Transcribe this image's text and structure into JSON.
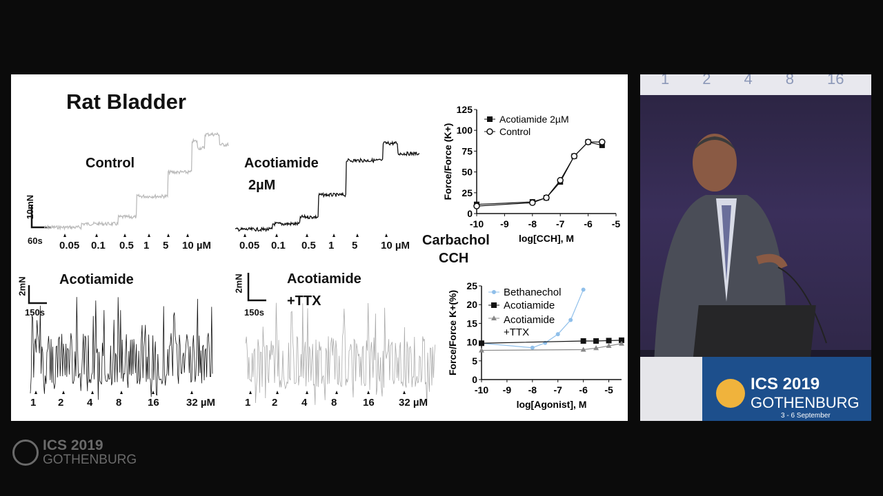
{
  "slide": {
    "title": "Rat Bladder",
    "control_label": "Control",
    "acotiamide_label_1": "Acotiamide",
    "acotiamide_label_2": "2µM",
    "scale_top": "10mN",
    "scale_top_time": "60s",
    "top_doses": [
      "0.05",
      "0.1",
      "0.5",
      "1",
      "5",
      "10 µM"
    ],
    "carbachol_1": "Carbachol",
    "carbachol_2": "CCH",
    "bottom_left_label": "Acotiamide",
    "bottom_mid_label_1": "Acotiamide",
    "bottom_mid_label_2": "+TTX",
    "scale_bottom": "2mN",
    "scale_bottom_time": "150s",
    "bottom_doses": [
      "1",
      "2",
      "4",
      "8",
      "16",
      "32 µM"
    ]
  },
  "chart_data": [
    {
      "type": "line",
      "xlabel": "log[CCH], M",
      "ylabel": "Force/Force (K+)",
      "xlim": [
        -10,
        -5
      ],
      "ylim": [
        0,
        125
      ],
      "xticks": [
        "-10",
        "-9",
        "-8",
        "-7",
        "-6",
        "-5"
      ],
      "yticks": [
        "0",
        "25",
        "50",
        "75",
        "100",
        "125"
      ],
      "legend": "top-left",
      "series": [
        {
          "name": "Acotiamide 2µM",
          "color": "#111111",
          "marker": "square",
          "x": [
            -10,
            -8,
            -7.5,
            -7,
            -6.5,
            -6,
            -5.5
          ],
          "y": [
            11,
            14,
            19,
            38,
            69,
            86,
            82
          ]
        },
        {
          "name": "Control",
          "color": "#111111",
          "marker": "open-circle",
          "x": [
            -10,
            -8,
            -7.5,
            -7,
            -6.5,
            -6,
            -5.5
          ],
          "y": [
            9,
            13,
            19,
            40,
            69,
            86,
            86
          ]
        }
      ]
    },
    {
      "type": "line",
      "xlabel": "log[Agonist], M",
      "ylabel": "Force/Force K+(%)",
      "xlim": [
        -10,
        -4.5
      ],
      "ylim": [
        0,
        25
      ],
      "xticks": [
        "-10",
        "-9",
        "-8",
        "-7",
        "-6",
        "-5"
      ],
      "yticks": [
        "0",
        "5",
        "10",
        "15",
        "20",
        "25"
      ],
      "legend": "top-left",
      "series": [
        {
          "name": "Bethanechol",
          "color": "#8fbfea",
          "marker": "circle",
          "x": [
            -10,
            -8,
            -7.5,
            -7,
            -6.5,
            -6
          ],
          "y": [
            9.7,
            8.5,
            9.8,
            12.1,
            15.9,
            24
          ]
        },
        {
          "name": "Acotiamide",
          "color": "#111111",
          "marker": "square",
          "x": [
            -10,
            -6,
            -5.5,
            -5,
            -4.5
          ],
          "y": [
            9.7,
            10.3,
            10.3,
            10.4,
            10.5
          ]
        },
        {
          "name": "Acotiamide +TTX",
          "color": "#888888",
          "marker": "triangle",
          "x": [
            -10,
            -6,
            -5.5,
            -5,
            -4.5
          ],
          "y": [
            7.8,
            8.0,
            8.4,
            9.0,
            9.6
          ]
        }
      ]
    }
  ],
  "camera": {
    "screen_numbers": [
      "1",
      "2",
      "4",
      "8",
      "16"
    ],
    "podium_brand": "ICS 2019",
    "podium_city": "GOTHENBURG",
    "podium_dates": "3 - 6 September"
  },
  "logo": {
    "brand": "ICS 2019",
    "city": "GOTHENBURG"
  }
}
